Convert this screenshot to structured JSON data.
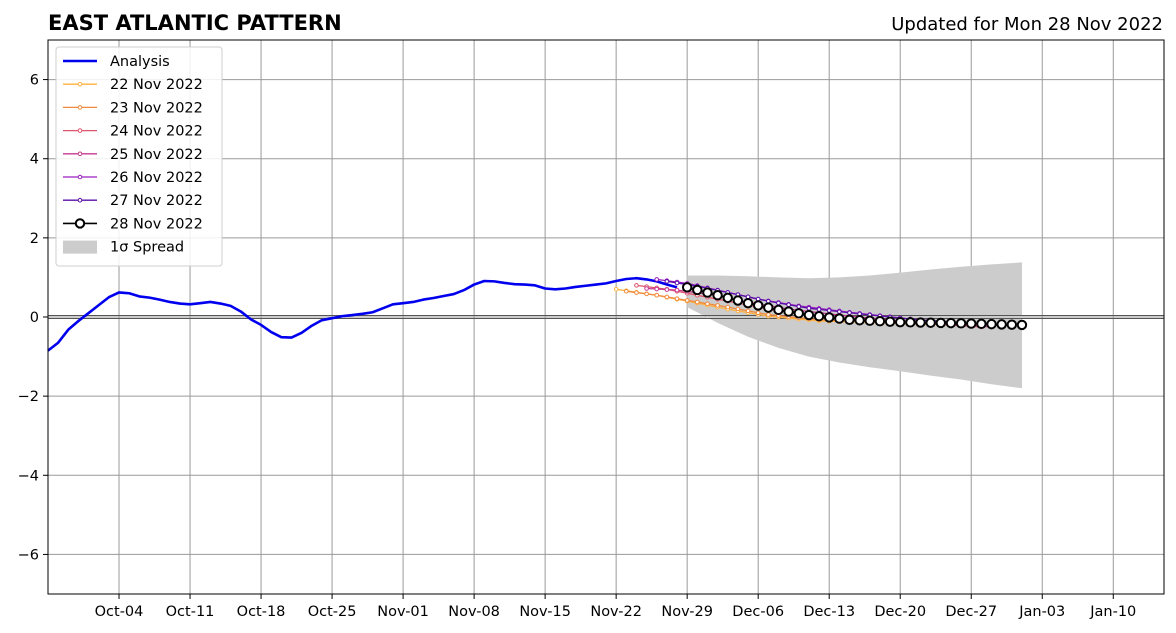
{
  "chart_data": {
    "type": "line",
    "title": "EAST ATLANTIC PATTERN",
    "subtitle": "Updated for Mon 28 Nov 2022",
    "xlabel": "",
    "ylabel": "",
    "ylim": [
      -7,
      7
    ],
    "xlim": [
      "2022-09-27",
      "2023-01-15"
    ],
    "y_ticks": [
      -6,
      -4,
      -2,
      0,
      2,
      4,
      6
    ],
    "y_tick_labels": [
      "−6",
      "−4",
      "−2",
      "0",
      "2",
      "4",
      "6"
    ],
    "x_ticks": [
      "2022-10-04",
      "2022-10-11",
      "2022-10-18",
      "2022-10-25",
      "2022-11-01",
      "2022-11-08",
      "2022-11-15",
      "2022-11-22",
      "2022-11-29",
      "2022-12-06",
      "2022-12-13",
      "2022-12-20",
      "2022-12-27",
      "2023-01-03",
      "2023-01-10"
    ],
    "x_tick_labels": [
      "Oct-04",
      "Oct-11",
      "Oct-18",
      "Oct-25",
      "Nov-01",
      "Nov-08",
      "Nov-15",
      "Nov-22",
      "Nov-29",
      "Dec-06",
      "Dec-13",
      "Dec-20",
      "Dec-27",
      "Jan-03",
      "Jan-10"
    ],
    "grid": true,
    "legend_position": "top-left",
    "zero_line": true,
    "analysis": {
      "name": "Analysis",
      "color": "#0000ee",
      "x": [
        "2022-09-27",
        "2022-09-28",
        "2022-09-29",
        "2022-09-30",
        "2022-10-01",
        "2022-10-02",
        "2022-10-03",
        "2022-10-04",
        "2022-10-05",
        "2022-10-06",
        "2022-10-07",
        "2022-10-08",
        "2022-10-09",
        "2022-10-10",
        "2022-10-11",
        "2022-10-12",
        "2022-10-13",
        "2022-10-14",
        "2022-10-15",
        "2022-10-16",
        "2022-10-17",
        "2022-10-18",
        "2022-10-19",
        "2022-10-20",
        "2022-10-21",
        "2022-10-22",
        "2022-10-23",
        "2022-10-24",
        "2022-10-25",
        "2022-10-26",
        "2022-10-27",
        "2022-10-28",
        "2022-10-29",
        "2022-10-30",
        "2022-10-31",
        "2022-11-01",
        "2022-11-02",
        "2022-11-03",
        "2022-11-04",
        "2022-11-05",
        "2022-11-06",
        "2022-11-07",
        "2022-11-08",
        "2022-11-09",
        "2022-11-10",
        "2022-11-11",
        "2022-11-12",
        "2022-11-13",
        "2022-11-14",
        "2022-11-15",
        "2022-11-16",
        "2022-11-17",
        "2022-11-18",
        "2022-11-19",
        "2022-11-20",
        "2022-11-21",
        "2022-11-22",
        "2022-11-23",
        "2022-11-24",
        "2022-11-25",
        "2022-11-26",
        "2022-11-27",
        "2022-11-28"
      ],
      "y": [
        -0.85,
        -0.65,
        -0.32,
        -0.1,
        0.1,
        0.3,
        0.5,
        0.62,
        0.6,
        0.52,
        0.49,
        0.44,
        0.38,
        0.34,
        0.32,
        0.35,
        0.38,
        0.34,
        0.28,
        0.14,
        -0.06,
        -0.2,
        -0.38,
        -0.51,
        -0.52,
        -0.4,
        -0.22,
        -0.08,
        -0.03,
        0.02,
        0.05,
        0.08,
        0.12,
        0.22,
        0.32,
        0.35,
        0.38,
        0.44,
        0.48,
        0.53,
        0.58,
        0.68,
        0.82,
        0.91,
        0.9,
        0.86,
        0.83,
        0.82,
        0.8,
        0.72,
        0.7,
        0.72,
        0.76,
        0.79,
        0.82,
        0.85,
        0.91,
        0.96,
        0.98,
        0.95,
        0.9,
        0.82,
        0.75
      ]
    },
    "spread": {
      "name": "1σ Spread",
      "color": "#cccccc",
      "x": [
        "2022-11-29",
        "2022-12-02",
        "2022-12-05",
        "2022-12-08",
        "2022-12-11",
        "2022-12-14",
        "2022-12-17",
        "2022-12-20",
        "2022-12-23",
        "2022-12-26",
        "2022-12-29",
        "2023-01-01"
      ],
      "upper": [
        1.05,
        1.05,
        1.03,
        1.0,
        0.98,
        1.0,
        1.05,
        1.12,
        1.2,
        1.27,
        1.33,
        1.38
      ],
      "lower": [
        0.25,
        -0.15,
        -0.5,
        -0.78,
        -1.0,
        -1.15,
        -1.27,
        -1.37,
        -1.48,
        -1.58,
        -1.7,
        -1.8
      ]
    },
    "forecasts": [
      {
        "name": "22 Nov 2022",
        "color": "#ffb140",
        "start": "2022-11-22",
        "end": "2022-12-26",
        "knots_x": [
          "2022-11-22",
          "2022-11-26",
          "2022-11-29",
          "2022-12-03",
          "2022-12-07",
          "2022-12-12",
          "2022-12-18",
          "2022-12-26"
        ],
        "knots_y": [
          0.7,
          0.55,
          0.4,
          0.2,
          0.02,
          -0.1,
          -0.15,
          -0.2
        ]
      },
      {
        "name": "23 Nov 2022",
        "color": "#f28a3c",
        "start": "2022-11-23",
        "end": "2022-12-27",
        "knots_x": [
          "2022-11-23",
          "2022-11-26",
          "2022-11-29",
          "2022-12-03",
          "2022-12-07",
          "2022-12-12",
          "2022-12-18",
          "2022-12-27"
        ],
        "knots_y": [
          0.65,
          0.55,
          0.42,
          0.25,
          0.06,
          -0.07,
          -0.14,
          -0.22
        ]
      },
      {
        "name": "24 Nov 2022",
        "color": "#e0546a",
        "start": "2022-11-24",
        "end": "2022-12-28",
        "knots_x": [
          "2022-11-24",
          "2022-11-27",
          "2022-11-30",
          "2022-12-04",
          "2022-12-08",
          "2022-12-13",
          "2022-12-19",
          "2022-12-28"
        ],
        "knots_y": [
          0.8,
          0.7,
          0.55,
          0.35,
          0.15,
          0.0,
          -0.12,
          -0.25
        ]
      },
      {
        "name": "25 Nov 2022",
        "color": "#c7388f",
        "start": "2022-11-25",
        "end": "2022-12-29",
        "knots_x": [
          "2022-11-25",
          "2022-11-28",
          "2022-12-01",
          "2022-12-05",
          "2022-12-09",
          "2022-12-14",
          "2022-12-20",
          "2022-12-29"
        ],
        "knots_y": [
          0.72,
          0.68,
          0.58,
          0.38,
          0.2,
          0.05,
          -0.1,
          -0.25
        ]
      },
      {
        "name": "26 Nov 2022",
        "color": "#9a1ec0",
        "start": "2022-11-26",
        "end": "2022-12-30",
        "knots_x": [
          "2022-11-26",
          "2022-11-29",
          "2022-12-02",
          "2022-12-06",
          "2022-12-10",
          "2022-12-15",
          "2022-12-21",
          "2022-12-30"
        ],
        "knots_y": [
          0.95,
          0.85,
          0.68,
          0.45,
          0.28,
          0.12,
          -0.05,
          -0.22
        ]
      },
      {
        "name": "27 Nov 2022",
        "color": "#5a0ea8",
        "start": "2022-11-27",
        "end": "2022-12-31",
        "knots_x": [
          "2022-11-27",
          "2022-11-30",
          "2022-12-03",
          "2022-12-07",
          "2022-12-11",
          "2022-12-16",
          "2022-12-22",
          "2022-12-31"
        ],
        "knots_y": [
          0.9,
          0.78,
          0.62,
          0.4,
          0.22,
          0.08,
          -0.08,
          -0.22
        ]
      },
      {
        "name": "28 Nov 2022",
        "color": "#000000",
        "start": "2022-11-29",
        "end": "2023-01-01",
        "open_markers": true,
        "knots_x": [
          "2022-11-29",
          "2022-12-02",
          "2022-12-05",
          "2022-12-08",
          "2022-12-11",
          "2022-12-15",
          "2022-12-20",
          "2022-12-26",
          "2023-01-01"
        ],
        "knots_y": [
          0.75,
          0.55,
          0.35,
          0.18,
          0.05,
          -0.07,
          -0.13,
          -0.16,
          -0.2
        ]
      }
    ]
  }
}
